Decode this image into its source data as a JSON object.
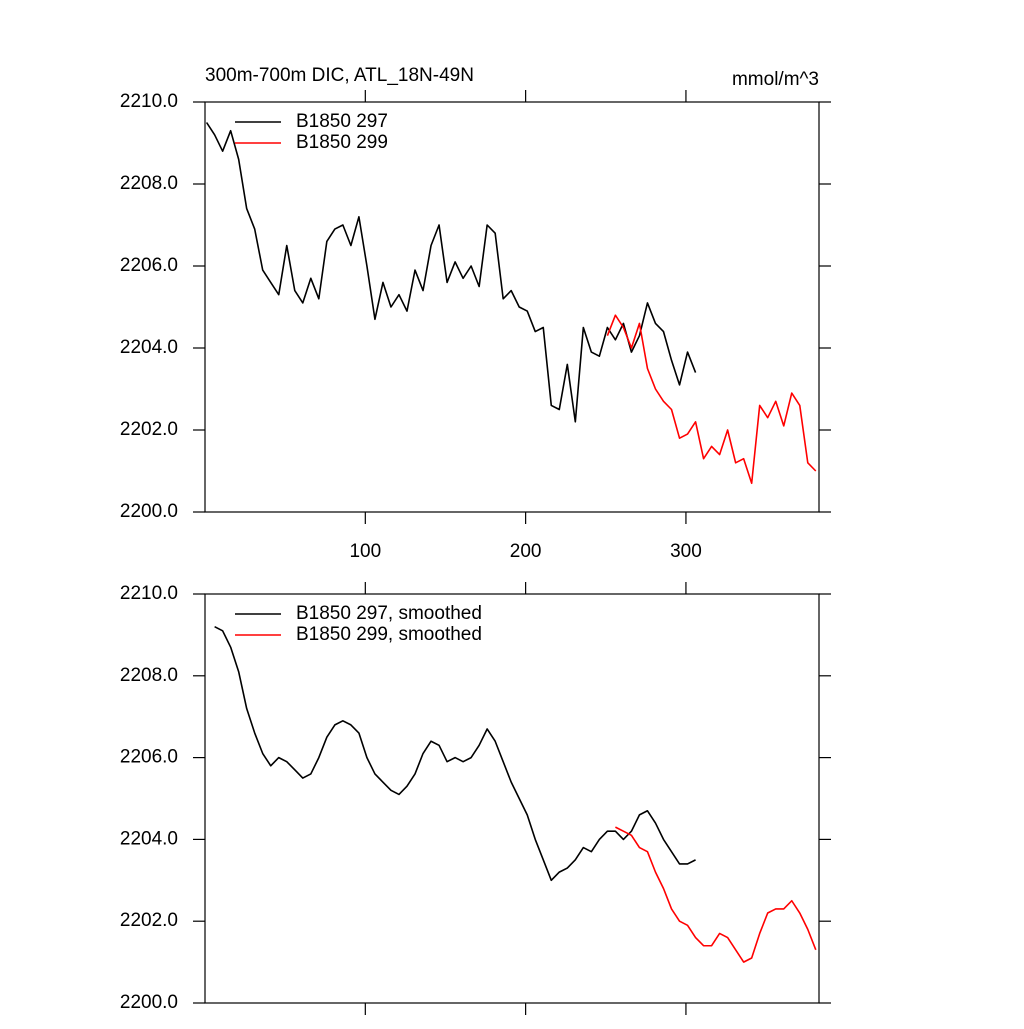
{
  "chart_data": [
    {
      "type": "line",
      "title": "300m-700m DIC, ATL_18N-49N",
      "units": "mmol/m^3",
      "legend": "upper left",
      "xlim": [
        0,
        383
      ],
      "xticks": [
        100,
        200,
        300
      ],
      "ylim": [
        2200,
        2210
      ],
      "yticks": [
        {
          "value": 2200,
          "label": "2200.0"
        },
        {
          "value": 2202,
          "label": "2202.0"
        },
        {
          "value": 2204,
          "label": "2204.0"
        },
        {
          "value": 2206,
          "label": "2206.0"
        },
        {
          "value": 2208,
          "label": "2208.0"
        },
        {
          "value": 2210,
          "label": "2210.0"
        }
      ],
      "x": [
        1,
        6,
        11,
        16,
        21,
        26,
        31,
        36,
        41,
        46,
        51,
        56,
        61,
        66,
        71,
        76,
        81,
        86,
        91,
        96,
        101,
        106,
        111,
        116,
        121,
        126,
        131,
        136,
        141,
        146,
        151,
        156,
        161,
        166,
        171,
        176,
        181,
        186,
        191,
        196,
        201,
        206,
        211,
        216,
        221,
        226,
        231,
        236,
        241,
        246,
        251,
        256,
        261,
        266,
        271,
        276,
        281,
        286,
        291,
        296,
        301,
        306,
        311,
        316,
        321,
        326,
        331,
        336,
        341,
        346,
        351,
        356,
        361,
        366,
        371,
        376,
        381
      ],
      "series": [
        {
          "name": "B1850 297",
          "color": "#000000",
          "values": [
            2209.5,
            2209.2,
            2208.8,
            2209.3,
            2208.6,
            2207.4,
            2206.9,
            2205.9,
            2205.6,
            2205.3,
            2206.5,
            2205.4,
            2205.1,
            2205.7,
            2205.2,
            2206.6,
            2206.9,
            2207.0,
            2206.5,
            2207.2,
            2206.0,
            2204.7,
            2205.6,
            2205.0,
            2205.3,
            2204.9,
            2205.9,
            2205.4,
            2206.5,
            2207.0,
            2205.6,
            2206.1,
            2205.7,
            2206.0,
            2205.5,
            2207.0,
            2206.8,
            2205.2,
            2205.4,
            2205.0,
            2204.9,
            2204.4,
            2204.5,
            2202.6,
            2202.5,
            2203.6,
            2202.2,
            2204.5,
            2203.9,
            2203.8,
            2204.5,
            2204.2,
            2204.6,
            2203.9,
            2204.3,
            2205.1,
            2204.6,
            2204.4,
            2203.7,
            2203.1,
            2203.9,
            2203.4,
            null,
            null,
            null,
            null,
            null,
            null,
            null,
            null,
            null,
            null,
            null,
            null,
            null,
            null,
            null
          ]
        },
        {
          "name": "B1850 299",
          "color": "#ff0000",
          "values": [
            null,
            null,
            null,
            null,
            null,
            null,
            null,
            null,
            null,
            null,
            null,
            null,
            null,
            null,
            null,
            null,
            null,
            null,
            null,
            null,
            null,
            null,
            null,
            null,
            null,
            null,
            null,
            null,
            null,
            null,
            null,
            null,
            null,
            null,
            null,
            null,
            null,
            null,
            null,
            null,
            null,
            null,
            null,
            null,
            null,
            null,
            null,
            null,
            null,
            null,
            2204.3,
            2204.8,
            2204.5,
            2204.0,
            2204.6,
            2203.5,
            2203.0,
            2202.7,
            2202.5,
            2201.8,
            2201.9,
            2202.2,
            2201.3,
            2201.6,
            2201.4,
            2202.0,
            2201.2,
            2201.3,
            2200.7,
            2202.6,
            2202.3,
            2202.7,
            2202.1,
            2202.9,
            2202.6,
            2201.2,
            2201.0
          ]
        }
      ]
    },
    {
      "type": "line",
      "legend": "upper left",
      "xlim": [
        0,
        383
      ],
      "xticks": [
        100,
        200,
        300
      ],
      "ylim": [
        2200,
        2210
      ],
      "yticks": [
        {
          "value": 2200,
          "label": "2200.0"
        },
        {
          "value": 2202,
          "label": "2202.0"
        },
        {
          "value": 2204,
          "label": "2204.0"
        },
        {
          "value": 2206,
          "label": "2206.0"
        },
        {
          "value": 2208,
          "label": "2208.0"
        },
        {
          "value": 2210,
          "label": "2210.0"
        }
      ],
      "x": [
        1,
        6,
        11,
        16,
        21,
        26,
        31,
        36,
        41,
        46,
        51,
        56,
        61,
        66,
        71,
        76,
        81,
        86,
        91,
        96,
        101,
        106,
        111,
        116,
        121,
        126,
        131,
        136,
        141,
        146,
        151,
        156,
        161,
        166,
        171,
        176,
        181,
        186,
        191,
        196,
        201,
        206,
        211,
        216,
        221,
        226,
        231,
        236,
        241,
        246,
        251,
        256,
        261,
        266,
        271,
        276,
        281,
        286,
        291,
        296,
        301,
        306,
        311,
        316,
        321,
        326,
        331,
        336,
        341,
        346,
        351,
        356,
        361,
        366,
        371,
        376,
        381
      ],
      "series": [
        {
          "name": "B1850 297, smoothed",
          "color": "#000000",
          "values": [
            null,
            2209.2,
            2209.1,
            2208.7,
            2208.1,
            2207.2,
            2206.6,
            2206.1,
            2205.8,
            2206.0,
            2205.9,
            2205.7,
            2205.5,
            2205.6,
            2206.0,
            2206.5,
            2206.8,
            2206.9,
            2206.8,
            2206.6,
            2206.0,
            2205.6,
            2205.4,
            2205.2,
            2205.1,
            2205.3,
            2205.6,
            2206.1,
            2206.4,
            2206.3,
            2205.9,
            2206.0,
            2205.9,
            2206.0,
            2206.3,
            2206.7,
            2206.4,
            2205.9,
            2205.4,
            2205.0,
            2204.6,
            2204.0,
            2203.5,
            2203.0,
            2203.2,
            2203.3,
            2203.5,
            2203.8,
            2203.7,
            2204.0,
            2204.2,
            2204.2,
            2204.0,
            2204.2,
            2204.6,
            2204.7,
            2204.4,
            2204.0,
            2203.7,
            2203.4,
            2203.4,
            2203.5,
            null,
            null,
            null,
            null,
            null,
            null,
            null,
            null,
            null,
            null,
            null,
            null,
            null,
            null,
            null
          ]
        },
        {
          "name": "B1850 299, smoothed",
          "color": "#ff0000",
          "values": [
            null,
            null,
            null,
            null,
            null,
            null,
            null,
            null,
            null,
            null,
            null,
            null,
            null,
            null,
            null,
            null,
            null,
            null,
            null,
            null,
            null,
            null,
            null,
            null,
            null,
            null,
            null,
            null,
            null,
            null,
            null,
            null,
            null,
            null,
            null,
            null,
            null,
            null,
            null,
            null,
            null,
            null,
            null,
            null,
            null,
            null,
            null,
            null,
            null,
            null,
            null,
            2204.3,
            2204.2,
            2204.1,
            2203.8,
            2203.7,
            2203.2,
            2202.8,
            2202.3,
            2202.0,
            2201.9,
            2201.6,
            2201.4,
            2201.4,
            2201.7,
            2201.6,
            2201.3,
            2201.0,
            2201.1,
            2201.7,
            2202.2,
            2202.3,
            2202.3,
            2202.5,
            2202.2,
            2201.8,
            2201.3
          ]
        }
      ]
    }
  ]
}
